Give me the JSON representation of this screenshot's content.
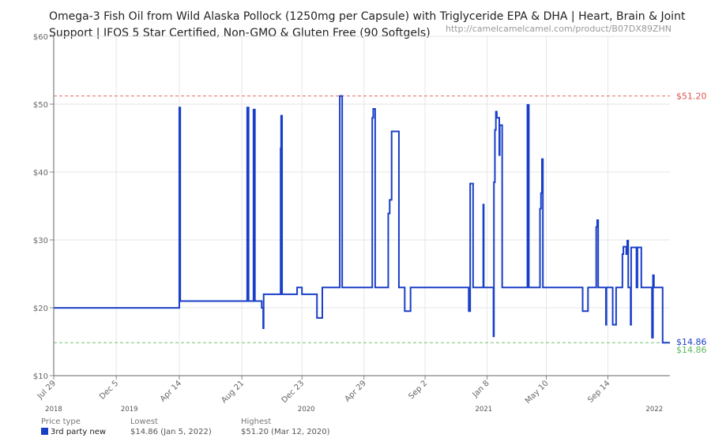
{
  "title": "Omega-3 Fish Oil from Wild Alaska Pollock (1250mg per Capsule) with Triglyceride EPA & DHA | Heart, Brain & Joint Support | IFOS 5 Star Certified, Non-GMO & Gluten Free (90 Softgels)",
  "source_url": "http://camelcamelcamel.com/product/B07DX89ZHN",
  "legend": {
    "col_type_header": "Price type",
    "col_lowest_header": "Lowest",
    "col_highest_header": "Highest",
    "series_name": "3rd party new",
    "lowest_value": "$14.86 (Jan 5, 2022)",
    "highest_value": "$51.20 (Mar 12, 2020)"
  },
  "colors": {
    "series": "#1a3fc7",
    "high_line": "#d9534f",
    "low_line": "#5cb85c"
  },
  "chart_data": {
    "type": "line",
    "x_axis": "date",
    "x_range": [
      "2018-07-29",
      "2022-01-20"
    ],
    "ylim": [
      10,
      60
    ],
    "y_ticks": [
      "$10",
      "$20",
      "$30",
      "$40",
      "$50",
      "$60"
    ],
    "x_ticks": [
      {
        "date": "2018-07-29",
        "label": "Jul 29"
      },
      {
        "date": "2018-12-05",
        "label": "Dec 5"
      },
      {
        "date": "2019-04-14",
        "label": "Apr 14"
      },
      {
        "date": "2019-08-21",
        "label": "Aug 21"
      },
      {
        "date": "2019-12-23",
        "label": "Dec 23"
      },
      {
        "date": "2020-04-29",
        "label": "Apr 29"
      },
      {
        "date": "2020-09-02",
        "label": "Sep 2"
      },
      {
        "date": "2021-01-08",
        "label": "Jan 8"
      },
      {
        "date": "2021-05-10",
        "label": "May 10"
      },
      {
        "date": "2021-09-14",
        "label": "Sep 14"
      }
    ],
    "year_labels": [
      {
        "date": "2018-07-29",
        "label": "2018"
      },
      {
        "date": "2019-01-01",
        "label": "2019"
      },
      {
        "date": "2020-01-01",
        "label": "2020"
      },
      {
        "date": "2021-01-01",
        "label": "2021"
      },
      {
        "date": "2022-01-01",
        "label": "2022"
      }
    ],
    "reference_lines": [
      {
        "label": "$51.20",
        "value": 51.2
      },
      {
        "label": "$14.86",
        "value": 14.86
      }
    ],
    "lowest_callout": "$14.86",
    "series": [
      {
        "name": "3rd party new",
        "points": [
          [
            "2018-07-29",
            19.99
          ],
          [
            "2019-04-14",
            19.99
          ],
          [
            "2019-04-14",
            49.5
          ],
          [
            "2019-04-16",
            49.5
          ],
          [
            "2019-04-16",
            20.99
          ],
          [
            "2019-09-01",
            20.99
          ],
          [
            "2019-09-01",
            49.5
          ],
          [
            "2019-09-04",
            49.5
          ],
          [
            "2019-09-04",
            20.99
          ],
          [
            "2019-09-14",
            20.99
          ],
          [
            "2019-09-14",
            49.2
          ],
          [
            "2019-09-17",
            49.2
          ],
          [
            "2019-09-17",
            20.99
          ],
          [
            "2019-10-01",
            20.99
          ],
          [
            "2019-10-01",
            19.99
          ],
          [
            "2019-10-04",
            19.99
          ],
          [
            "2019-10-04",
            16.99
          ],
          [
            "2019-10-05",
            16.99
          ],
          [
            "2019-10-05",
            21.99
          ],
          [
            "2019-11-09",
            21.99
          ],
          [
            "2019-11-09",
            43.5
          ],
          [
            "2019-11-10",
            43.5
          ],
          [
            "2019-11-10",
            48.3
          ],
          [
            "2019-11-12",
            48.3
          ],
          [
            "2019-11-12",
            21.99
          ],
          [
            "2019-12-13",
            21.99
          ],
          [
            "2019-12-13",
            22.99
          ],
          [
            "2019-12-23",
            22.99
          ],
          [
            "2019-12-23",
            21.99
          ],
          [
            "2020-01-23",
            21.99
          ],
          [
            "2020-01-23",
            18.5
          ],
          [
            "2020-02-03",
            18.5
          ],
          [
            "2020-02-03",
            22.99
          ],
          [
            "2020-03-10",
            22.99
          ],
          [
            "2020-03-10",
            51.2
          ],
          [
            "2020-03-15",
            51.2
          ],
          [
            "2020-03-15",
            22.99
          ],
          [
            "2020-05-16",
            22.99
          ],
          [
            "2020-05-16",
            48.0
          ],
          [
            "2020-05-18",
            48.0
          ],
          [
            "2020-05-18",
            49.3
          ],
          [
            "2020-05-22",
            49.3
          ],
          [
            "2020-05-22",
            22.99
          ],
          [
            "2020-06-18",
            22.99
          ],
          [
            "2020-06-18",
            33.9
          ],
          [
            "2020-06-21",
            33.9
          ],
          [
            "2020-06-21",
            35.9
          ],
          [
            "2020-06-25",
            35.9
          ],
          [
            "2020-06-25",
            45.99
          ],
          [
            "2020-07-10",
            45.99
          ],
          [
            "2020-07-10",
            22.99
          ],
          [
            "2020-07-22",
            22.99
          ],
          [
            "2020-07-22",
            19.5
          ],
          [
            "2020-08-03",
            19.5
          ],
          [
            "2020-08-03",
            22.99
          ],
          [
            "2020-12-01",
            22.99
          ],
          [
            "2020-12-01",
            19.5
          ],
          [
            "2020-12-04",
            19.5
          ],
          [
            "2020-12-04",
            38.3
          ],
          [
            "2020-12-10",
            38.3
          ],
          [
            "2020-12-10",
            22.99
          ],
          [
            "2020-12-31",
            22.99
          ],
          [
            "2020-12-31",
            35.2
          ],
          [
            "2021-01-01",
            35.2
          ],
          [
            "2021-01-01",
            22.99
          ],
          [
            "2021-01-21",
            22.99
          ],
          [
            "2021-01-21",
            15.8
          ],
          [
            "2021-01-22",
            15.8
          ],
          [
            "2021-01-22",
            38.5
          ],
          [
            "2021-01-24",
            38.5
          ],
          [
            "2021-01-24",
            46.2
          ],
          [
            "2021-01-26",
            46.2
          ],
          [
            "2021-01-26",
            48.9
          ],
          [
            "2021-01-28",
            48.9
          ],
          [
            "2021-01-28",
            48.0
          ],
          [
            "2021-02-02",
            48.0
          ],
          [
            "2021-02-02",
            42.5
          ],
          [
            "2021-02-03",
            42.5
          ],
          [
            "2021-02-03",
            46.9
          ],
          [
            "2021-02-08",
            46.9
          ],
          [
            "2021-02-08",
            22.99
          ],
          [
            "2021-04-01",
            22.99
          ],
          [
            "2021-04-01",
            49.9
          ],
          [
            "2021-04-04",
            49.9
          ],
          [
            "2021-04-04",
            22.99
          ],
          [
            "2021-04-27",
            22.99
          ],
          [
            "2021-04-27",
            34.6
          ],
          [
            "2021-04-29",
            34.6
          ],
          [
            "2021-04-29",
            36.9
          ],
          [
            "2021-05-01",
            36.9
          ],
          [
            "2021-05-01",
            41.9
          ],
          [
            "2021-05-03",
            41.9
          ],
          [
            "2021-05-03",
            22.99
          ],
          [
            "2021-07-24",
            22.99
          ],
          [
            "2021-07-24",
            19.5
          ],
          [
            "2021-08-04",
            19.5
          ],
          [
            "2021-08-04",
            22.99
          ],
          [
            "2021-08-21",
            22.99
          ],
          [
            "2021-08-21",
            31.9
          ],
          [
            "2021-08-23",
            31.9
          ],
          [
            "2021-08-23",
            32.9
          ],
          [
            "2021-08-25",
            32.9
          ],
          [
            "2021-08-25",
            22.99
          ],
          [
            "2021-09-10",
            22.99
          ],
          [
            "2021-09-10",
            17.5
          ],
          [
            "2021-09-11",
            17.5
          ],
          [
            "2021-09-11",
            22.99
          ],
          [
            "2021-09-24",
            22.99
          ],
          [
            "2021-09-24",
            17.5
          ],
          [
            "2021-10-01",
            17.5
          ],
          [
            "2021-10-01",
            22.99
          ],
          [
            "2021-10-14",
            22.99
          ],
          [
            "2021-10-14",
            27.9
          ],
          [
            "2021-10-16",
            27.9
          ],
          [
            "2021-10-16",
            29.0
          ],
          [
            "2021-10-22",
            29.0
          ],
          [
            "2021-10-22",
            27.9
          ],
          [
            "2021-10-24",
            27.9
          ],
          [
            "2021-10-24",
            29.9
          ],
          [
            "2021-10-26",
            29.9
          ],
          [
            "2021-10-26",
            22.99
          ],
          [
            "2021-10-31",
            22.99
          ],
          [
            "2021-10-31",
            17.5
          ],
          [
            "2021-11-01",
            17.5
          ],
          [
            "2021-11-01",
            28.9
          ],
          [
            "2021-11-12",
            28.9
          ],
          [
            "2021-11-12",
            22.99
          ],
          [
            "2021-11-14",
            22.99
          ],
          [
            "2021-11-14",
            28.9
          ],
          [
            "2021-11-22",
            28.9
          ],
          [
            "2021-11-22",
            22.99
          ],
          [
            "2021-12-14",
            22.99
          ],
          [
            "2021-12-14",
            15.6
          ],
          [
            "2021-12-16",
            15.6
          ],
          [
            "2021-12-16",
            24.8
          ],
          [
            "2021-12-18",
            24.8
          ],
          [
            "2021-12-18",
            22.99
          ],
          [
            "2022-01-05",
            22.99
          ],
          [
            "2022-01-05",
            14.86
          ],
          [
            "2022-01-20",
            14.86
          ]
        ]
      }
    ]
  }
}
